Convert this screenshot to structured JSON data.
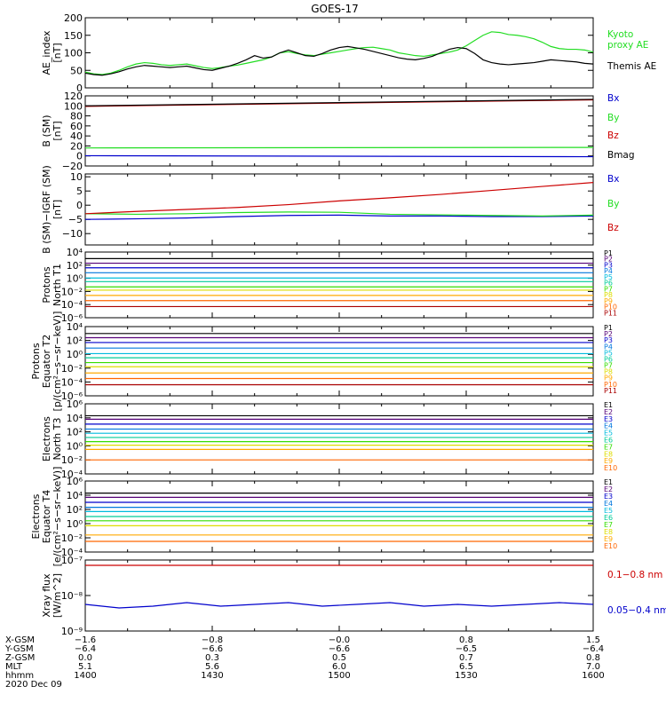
{
  "title": "GOES-17",
  "colors": {
    "black": "#000000",
    "red": "#cc0000",
    "green": "#22dd22",
    "blue": "#0000cc",
    "proton_channels": [
      "#000000",
      "#550077",
      "#0000cc",
      "#0077dd",
      "#00bbdd",
      "#00cc99",
      "#33dd00",
      "#dddd00",
      "#ffaa00",
      "#ff6600",
      "#aa0000"
    ],
    "electron_channels": [
      "#000000",
      "#550077",
      "#0000cc",
      "#0077dd",
      "#00bbdd",
      "#00cc99",
      "#33dd00",
      "#dddd00",
      "#ffaa00",
      "#ff6600"
    ]
  },
  "chart_data": [
    {
      "type": "line",
      "name": "ae",
      "ylabel": [
        "AE_index",
        "[nT]"
      ],
      "ylim": [
        0,
        200
      ],
      "yticks": [
        {
          "v": 0,
          "t": "0"
        },
        {
          "v": 50,
          "t": "50"
        },
        {
          "v": 100,
          "t": "100"
        },
        {
          "v": 150,
          "t": "150"
        },
        {
          "v": 200,
          "t": "200"
        }
      ],
      "x": [
        0,
        1,
        2,
        3,
        4,
        5,
        6,
        7,
        8,
        9,
        10,
        11,
        12,
        13,
        14,
        15,
        16,
        17,
        18,
        19,
        20,
        21,
        22,
        23,
        24,
        25,
        26,
        27,
        28,
        29,
        30,
        31,
        32,
        33,
        34,
        35,
        36,
        37,
        38,
        39,
        40,
        41,
        42,
        43,
        44,
        45,
        46,
        47,
        48,
        49,
        50,
        51,
        52,
        53,
        54,
        55,
        56,
        57,
        58,
        59,
        60
      ],
      "series": [
        {
          "name": "Kyoto proxy AE",
          "label_lines": [
            "Kyoto",
            "proxy AE"
          ],
          "color": "#22dd22",
          "values": [
            45,
            40,
            38,
            42,
            50,
            60,
            68,
            72,
            70,
            66,
            64,
            66,
            68,
            63,
            58,
            55,
            58,
            62,
            65,
            70,
            75,
            80,
            88,
            100,
            103,
            98,
            94,
            92,
            96,
            100,
            104,
            108,
            112,
            115,
            116,
            112,
            108,
            100,
            96,
            92,
            90,
            94,
            98,
            102,
            108,
            120,
            135,
            150,
            160,
            158,
            152,
            150,
            146,
            140,
            130,
            118,
            112,
            110,
            110,
            108,
            102
          ]
        },
        {
          "name": "Themis AE",
          "label_lines": [
            "Themis AE"
          ],
          "color": "#000000",
          "values": [
            42,
            38,
            36,
            40,
            46,
            54,
            60,
            64,
            62,
            60,
            58,
            60,
            62,
            57,
            52,
            50,
            56,
            62,
            70,
            80,
            92,
            85,
            88,
            100,
            108,
            100,
            92,
            90,
            98,
            108,
            115,
            118,
            114,
            110,
            104,
            98,
            92,
            86,
            82,
            80,
            84,
            90,
            100,
            110,
            115,
            112,
            98,
            80,
            72,
            68,
            66,
            68,
            70,
            72,
            76,
            80,
            78,
            76,
            74,
            70,
            68
          ]
        }
      ]
    },
    {
      "type": "line",
      "name": "bsm",
      "ylabel": [
        "B (SM)",
        "[nT]"
      ],
      "ylim": [
        -20,
        120
      ],
      "yticks": [
        {
          "v": -20,
          "t": "−20"
        },
        {
          "v": 0,
          "t": "0"
        },
        {
          "v": 20,
          "t": "20"
        },
        {
          "v": 40,
          "t": "40"
        },
        {
          "v": 60,
          "t": "60"
        },
        {
          "v": 80,
          "t": "80"
        },
        {
          "v": 100,
          "t": "100"
        },
        {
          "v": 120,
          "t": "120"
        }
      ],
      "x": [
        0,
        60
      ],
      "series": [
        {
          "name": "Bx",
          "color": "#0000cc",
          "values": [
            0.5,
            -1.5
          ]
        },
        {
          "name": "By",
          "color": "#22dd22",
          "values": [
            16,
            17
          ]
        },
        {
          "name": "Bz",
          "color": "#cc0000",
          "values": [
            99,
            112
          ]
        },
        {
          "name": "Bmag",
          "color": "#000000",
          "values": [
            100,
            113
          ]
        }
      ]
    },
    {
      "type": "line",
      "name": "bigrf",
      "ylabel": [
        "B (SM)−IGRF (SM)",
        "[nT]"
      ],
      "ylim": [
        -14,
        11
      ],
      "yticks": [
        {
          "v": -10,
          "t": "−10"
        },
        {
          "v": -5,
          "t": "−5"
        },
        {
          "v": 0,
          "t": "0"
        },
        {
          "v": 5,
          "t": "5"
        },
        {
          "v": 10,
          "t": "10"
        }
      ],
      "x": [
        0,
        6,
        12,
        18,
        24,
        30,
        36,
        42,
        48,
        54,
        60
      ],
      "series": [
        {
          "name": "Bx",
          "color": "#0000cc",
          "values": [
            -5,
            -4.8,
            -4.5,
            -4,
            -3.6,
            -3.5,
            -3.8,
            -3.8,
            -4,
            -4,
            -3.8
          ]
        },
        {
          "name": "By",
          "color": "#22dd22",
          "values": [
            -3,
            -3.2,
            -3,
            -2.6,
            -2.4,
            -2.5,
            -3.2,
            -3.4,
            -3.6,
            -3.8,
            -3.5
          ]
        },
        {
          "name": "Bz",
          "color": "#cc0000",
          "values": [
            -3,
            -2.2,
            -1.5,
            -0.8,
            0.2,
            1.5,
            2.6,
            3.8,
            5.2,
            6.6,
            8
          ]
        }
      ]
    },
    {
      "type": "line",
      "name": "protons_t1",
      "log": true,
      "ylabel": [
        "Protons",
        "North T1"
      ],
      "ylim": [
        -6,
        4
      ],
      "yticks": [
        {
          "v": -6,
          "t": "10⁻⁶"
        },
        {
          "v": -4,
          "t": "10⁻⁴"
        },
        {
          "v": -2,
          "t": "10⁻²"
        },
        {
          "v": 0,
          "t": "10⁰"
        },
        {
          "v": 2,
          "t": "10²"
        },
        {
          "v": 4,
          "t": "10⁴"
        }
      ],
      "channels": [
        {
          "name": "P1",
          "log10": 3.0
        },
        {
          "name": "P2",
          "log10": 2.3
        },
        {
          "name": "P3",
          "log10": 1.6
        },
        {
          "name": "P4",
          "log10": 0.85
        },
        {
          "name": "P5",
          "log10": 0.05
        },
        {
          "name": "P6",
          "log10": -0.5
        },
        {
          "name": "P7",
          "log10": -1.3
        },
        {
          "name": "P8",
          "log10": -1.8
        },
        {
          "name": "P9",
          "log10": -2.6
        },
        {
          "name": "P10",
          "log10": -3.4
        },
        {
          "name": "P11",
          "log10": -4.3
        }
      ]
    },
    {
      "type": "line",
      "name": "protons_t2",
      "log": true,
      "ylabel": [
        "Protons",
        "Equator T2",
        "[p/(cm²−s−sr−keV)]"
      ],
      "ylim": [
        -6,
        4
      ],
      "yticks": [
        {
          "v": -6,
          "t": "10⁻⁶"
        },
        {
          "v": -4,
          "t": "10⁻⁴"
        },
        {
          "v": -2,
          "t": "10⁻²"
        },
        {
          "v": 0,
          "t": "10⁰"
        },
        {
          "v": 2,
          "t": "10²"
        },
        {
          "v": 4,
          "t": "10⁴"
        }
      ],
      "channels": [
        {
          "name": "P1",
          "log10": 3.0
        },
        {
          "name": "P2",
          "log10": 2.4
        },
        {
          "name": "P3",
          "log10": 1.7
        },
        {
          "name": "P4",
          "log10": 0.9
        },
        {
          "name": "P5",
          "log10": 0.1
        },
        {
          "name": "P6",
          "log10": -0.5
        },
        {
          "name": "P7",
          "log10": -1.2
        },
        {
          "name": "P8",
          "log10": -1.8
        },
        {
          "name": "P9",
          "log10": -2.7
        },
        {
          "name": "P10",
          "log10": -3.5
        },
        {
          "name": "P11",
          "log10": -4.4
        }
      ]
    },
    {
      "type": "line",
      "name": "electrons_t3",
      "log": true,
      "ylabel": [
        "Electrons",
        "North T3"
      ],
      "ylim": [
        -4,
        6
      ],
      "yticks": [
        {
          "v": -4,
          "t": "10⁻⁴"
        },
        {
          "v": -2,
          "t": "10⁻²"
        },
        {
          "v": 0,
          "t": "10⁰"
        },
        {
          "v": 2,
          "t": "10²"
        },
        {
          "v": 4,
          "t": "10⁴"
        },
        {
          "v": 6,
          "t": "10⁶"
        }
      ],
      "channels": [
        {
          "name": "E1",
          "log10": 4.3
        },
        {
          "name": "E2",
          "log10": 3.8
        },
        {
          "name": "E3",
          "log10": 3.1
        },
        {
          "name": "E4",
          "log10": 2.4
        },
        {
          "name": "E5",
          "log10": 1.8
        },
        {
          "name": "E6",
          "log10": 1.2
        },
        {
          "name": "E7",
          "log10": 0.6
        },
        {
          "name": "E8",
          "log10": 0.1
        },
        {
          "name": "E9",
          "log10": -0.5
        },
        {
          "name": "E10",
          "log10": -2.0
        }
      ]
    },
    {
      "type": "line",
      "name": "electrons_t4",
      "log": true,
      "ylabel": [
        "Electrons",
        "Equator T4",
        "[e/(cm²−s−sr−keV)]"
      ],
      "ylim": [
        -4,
        6
      ],
      "yticks": [
        {
          "v": -4,
          "t": "10⁻⁴"
        },
        {
          "v": -2,
          "t": "10⁻²"
        },
        {
          "v": 0,
          "t": "10⁰"
        },
        {
          "v": 2,
          "t": "10²"
        },
        {
          "v": 4,
          "t": "10⁴"
        },
        {
          "v": 6,
          "t": "10⁶"
        }
      ],
      "channels": [
        {
          "name": "E1",
          "log10": 4.3
        },
        {
          "name": "E2",
          "log10": 3.7
        },
        {
          "name": "E3",
          "log10": 3.0
        },
        {
          "name": "E4",
          "log10": 2.3
        },
        {
          "name": "E5",
          "log10": 1.7
        },
        {
          "name": "E6",
          "log10": 1.0
        },
        {
          "name": "E7",
          "log10": 0.4
        },
        {
          "name": "E8",
          "log10": -0.3
        },
        {
          "name": "E9",
          "log10": -1.6
        },
        {
          "name": "E10",
          "log10": -2.5
        }
      ]
    },
    {
      "type": "line",
      "name": "xray",
      "log": true,
      "ylabel": [
        "Xray flux",
        "[W/m^2]"
      ],
      "ylim": [
        -9,
        -7
      ],
      "yticks": [
        {
          "v": -9,
          "t": "10⁻⁹"
        },
        {
          "v": -8,
          "t": "10⁻⁸"
        },
        {
          "v": -7,
          "t": "10⁻⁷"
        }
      ],
      "x": [
        0,
        4,
        8,
        12,
        16,
        20,
        24,
        28,
        32,
        36,
        40,
        44,
        48,
        52,
        56,
        60
      ],
      "series": [
        {
          "name": "0.1−0.8 nm",
          "color": "#cc0000",
          "log10": [
            -7.15,
            -7.15,
            -7.15,
            -7.15,
            -7.15,
            -7.15,
            -7.15,
            -7.15,
            -7.15,
            -7.15,
            -7.15,
            -7.15,
            -7.15,
            -7.15,
            -7.15,
            -7.15
          ]
        },
        {
          "name": "0.05−0.4 nm",
          "color": "#0000cc",
          "log10": [
            -8.25,
            -8.35,
            -8.3,
            -8.2,
            -8.3,
            -8.25,
            -8.2,
            -8.3,
            -8.25,
            -8.2,
            -8.3,
            -8.25,
            -8.3,
            -8.25,
            -8.2,
            -8.25
          ]
        }
      ]
    }
  ],
  "x_axis": {
    "row_labels": [
      "X-GSM",
      "Y-GSM",
      "Z-GSM",
      "MLT",
      "hhmm"
    ],
    "ticks": [
      {
        "t": 0,
        "values": [
          "−1.6",
          "−6.4",
          "0.0",
          "5.1",
          "1400"
        ]
      },
      {
        "t": 15,
        "values": [
          "−0.8",
          "−6.6",
          "0.3",
          "5.6",
          "1430"
        ]
      },
      {
        "t": 30,
        "values": [
          "−0.0",
          "−6.6",
          "0.5",
          "6.0",
          "1500"
        ]
      },
      {
        "t": 45,
        "values": [
          "0.8",
          "−6.5",
          "0.7",
          "6.5",
          "1530"
        ]
      },
      {
        "t": 60,
        "values": [
          "1.5",
          "−6.4",
          "0.8",
          "7.0",
          "1600"
        ]
      }
    ],
    "date": "2020 Dec 09",
    "xlim": [
      0,
      60
    ]
  }
}
